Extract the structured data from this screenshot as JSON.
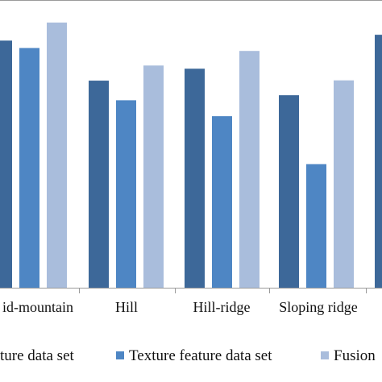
{
  "chart_data": {
    "type": "bar",
    "title": "",
    "xlabel": "",
    "ylabel": "",
    "ylim": [
      0,
      1
    ],
    "grid": false,
    "legend_position": "bottom",
    "categories": [
      "Mid-mountain",
      "Hill",
      "Hill-ridge",
      "Sloping ridge"
    ],
    "category_labels_visible": [
      "id-mountain",
      "Hill",
      "Hill-ridge",
      "Sloping ridge"
    ],
    "series": [
      {
        "name": "Spectral feature data set",
        "legend_label": "ture data set",
        "color": "#3d6899",
        "values": [
          0.932,
          0.781,
          0.826,
          0.726
        ]
      },
      {
        "name": "Texture feature data set",
        "legend_label": "Texture feature data set",
        "color": "#4e86c4",
        "values": [
          0.904,
          0.707,
          0.647,
          0.466
        ]
      },
      {
        "name": "Fusion",
        "legend_label": "Fusion",
        "color": "#a9bddc",
        "values": [
          1.0,
          0.838,
          0.893,
          0.782
        ]
      }
    ],
    "partial_next_category": {
      "series_index": 0,
      "value": 0.954
    }
  }
}
